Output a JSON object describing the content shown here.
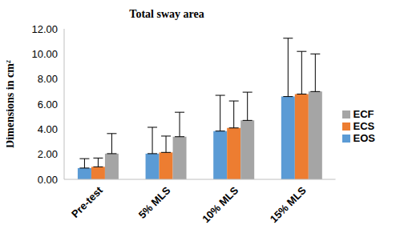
{
  "chart_data": {
    "type": "bar",
    "title": "Total sway area",
    "y_label": "Dimensions in cm²",
    "categories": [
      "Pre-test",
      "5% MLS",
      "10% MLS",
      "15% MLS"
    ],
    "series": [
      {
        "name": "EOS",
        "color": "#5B9BD5",
        "values": [
          0.9,
          2.05,
          3.85,
          6.6
        ],
        "errors": [
          0.75,
          2.1,
          2.85,
          4.65
        ]
      },
      {
        "name": "ECS",
        "color": "#ED7D31",
        "values": [
          1.0,
          2.15,
          4.1,
          6.8
        ],
        "errors": [
          0.7,
          1.3,
          2.15,
          3.4
        ]
      },
      {
        "name": "ECF",
        "color": "#A5A5A5",
        "values": [
          2.05,
          3.4,
          4.7,
          7.0
        ],
        "errors": [
          1.6,
          1.95,
          2.25,
          3.0
        ]
      }
    ],
    "ylim": [
      0,
      12
    ],
    "yticks": [
      {
        "value": 0,
        "label": "0.00"
      },
      {
        "value": 2,
        "label": "2.00"
      },
      {
        "value": 4,
        "label": "4.00"
      },
      {
        "value": 6,
        "label": "6.00"
      },
      {
        "value": 8,
        "label": "8.00"
      },
      {
        "value": 10,
        "label": "10.00"
      },
      {
        "value": 12,
        "label": "12.00"
      }
    ],
    "grid": false,
    "legend": "right"
  }
}
